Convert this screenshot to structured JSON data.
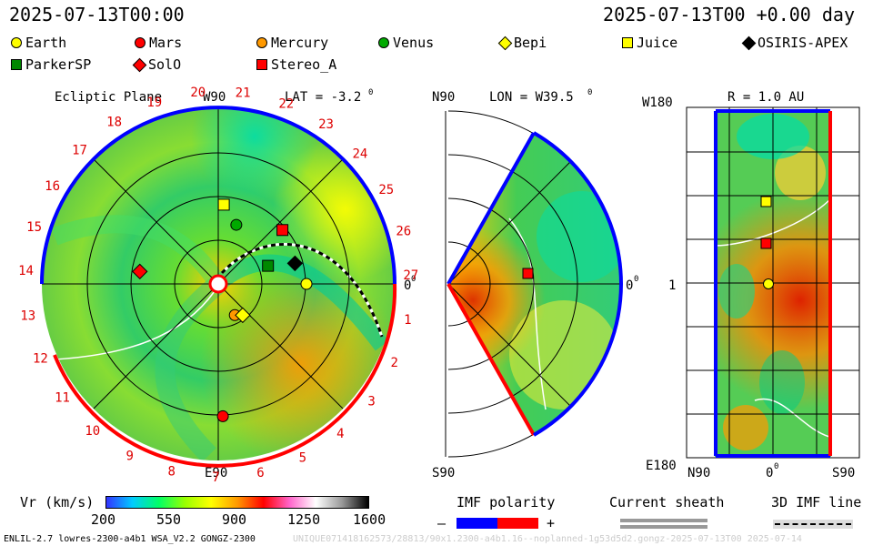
{
  "header": {
    "timestamp_left": "2025-07-13T00:00",
    "timestamp_right": "2025-07-13T00 +0.00 day"
  },
  "legend": [
    {
      "label": "Earth",
      "color": "#ffff00",
      "shape": "circle"
    },
    {
      "label": "Mars",
      "color": "#ff0000",
      "shape": "circle"
    },
    {
      "label": "Mercury",
      "color": "#ff9900",
      "shape": "circle"
    },
    {
      "label": "Venus",
      "color": "#00aa00",
      "shape": "circle"
    },
    {
      "label": "Bepi",
      "color": "#ffff00",
      "shape": "diamond"
    },
    {
      "label": "Juice",
      "color": "#ffff00",
      "shape": "square"
    },
    {
      "label": "OSIRIS-APEX",
      "color": "#000000",
      "shape": "diamond"
    },
    {
      "label": "ParkerSP",
      "color": "#008800",
      "shape": "square"
    },
    {
      "label": "SolO",
      "color": "#ff0000",
      "shape": "diamond"
    },
    {
      "label": "Stereo_A",
      "color": "#ff0000",
      "shape": "square"
    }
  ],
  "panels": {
    "ecliptic": {
      "title": "Ecliptic Plane",
      "top_label": "W90",
      "lat": "LAT = -3.2",
      "lat_sup": "0",
      "bottom_label": "E90",
      "right_label": "0",
      "right_sup": "0",
      "sectors": [
        "20",
        "21",
        "22",
        "23",
        "24",
        "25",
        "26",
        "27",
        "1",
        "2",
        "3",
        "4",
        "5",
        "6",
        "7",
        "8",
        "9",
        "10",
        "11",
        "12",
        "13",
        "14",
        "15",
        "16",
        "17",
        "18",
        "19"
      ]
    },
    "meridional": {
      "top_left": "N90",
      "lon": "LON = W39.5",
      "lon_sup": "0",
      "bottom_left": "S90",
      "right_label": "0",
      "right_sup": "0"
    },
    "radial": {
      "top_left": "W180",
      "title": "R = 1.0 AU",
      "mid_left": "1",
      "bottom_left": "E180",
      "x_left": "N90",
      "x_mid": "0",
      "x_mid_sup": "0",
      "x_right": "S90"
    }
  },
  "colorbar": {
    "label": "Vr (km/s)",
    "ticks": [
      "200",
      "550",
      "900",
      "1250",
      "1600"
    ],
    "stops": [
      "#3333ff",
      "#00ccff",
      "#00ff66",
      "#99ff00",
      "#ffff00",
      "#ff9900",
      "#ff0000",
      "#ff66cc",
      "#ffffff",
      "#999999",
      "#000000"
    ]
  },
  "imf": {
    "label": "IMF polarity",
    "minus": "–",
    "plus": "+",
    "neg_color": "#0000ff",
    "pos_color": "#ff0000"
  },
  "sheath": {
    "label": "Current sheath"
  },
  "imf3d": {
    "label": "3D IMF line"
  },
  "footer": {
    "left": "ENLIL-2.7 lowres-2300-a4b1 WSA_V2.2 GONGZ-2300",
    "right": "UNIQUE071418162573/28813/90x1.2300-a4b1.16--noplanned-1g53d5d2.gongz-2025-07-13T00    2025-07-14"
  },
  "chart_data": [
    {
      "type": "heatmap",
      "title": "Ecliptic Plane",
      "quantity": "Vr (km/s)",
      "color_range": [
        200,
        1600
      ],
      "objects": [
        {
          "name": "Earth",
          "longitude_deg": 0,
          "r_au": 1.0
        },
        {
          "name": "Mars",
          "longitude_deg": -88,
          "r_au": 1.5
        },
        {
          "name": "Mercury",
          "longitude_deg": -62,
          "r_au": 0.4
        },
        {
          "name": "Venus",
          "longitude_deg": 73,
          "r_au": 0.7
        },
        {
          "name": "Bepi",
          "longitude_deg": -52,
          "r_au": 0.45
        },
        {
          "name": "Juice",
          "longitude_deg": 86,
          "r_au": 0.9
        },
        {
          "name": "OSIRIS-APEX",
          "longitude_deg": 15,
          "r_au": 0.9
        },
        {
          "name": "ParkerSP",
          "longitude_deg": 20,
          "r_au": 0.6
        },
        {
          "name": "SolO",
          "longitude_deg": 171,
          "r_au": 0.9
        },
        {
          "name": "Stereo_A",
          "longitude_deg": 40,
          "r_au": 0.95
        }
      ]
    },
    {
      "type": "heatmap",
      "title": "Meridional",
      "lon": "W39.5",
      "objects": [
        {
          "name": "Stereo_A"
        }
      ]
    },
    {
      "type": "heatmap",
      "title": "R = 1.0 AU",
      "objects": [
        {
          "name": "Juice"
        },
        {
          "name": "Stereo_A"
        },
        {
          "name": "Earth"
        }
      ]
    }
  ]
}
